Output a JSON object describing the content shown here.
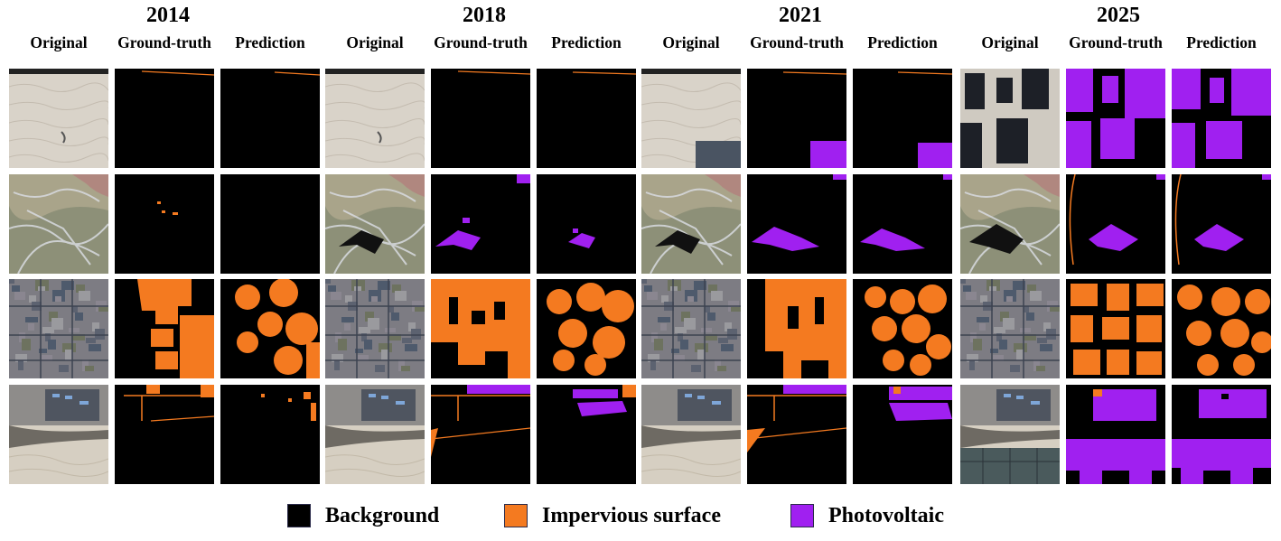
{
  "years": [
    "2014",
    "2018",
    "2021",
    "2025"
  ],
  "column_labels": [
    "Original",
    "Ground-truth",
    "Prediction"
  ],
  "legend": [
    {
      "label": "Background",
      "color": "#000000"
    },
    {
      "label": "Impervious surface",
      "color": "#f47a20"
    },
    {
      "label": "Photovoltaic",
      "color": "#a020f0"
    }
  ],
  "colors": {
    "background": "#000000",
    "impervious": "#f47a20",
    "photovoltaic": "#a020f0"
  }
}
